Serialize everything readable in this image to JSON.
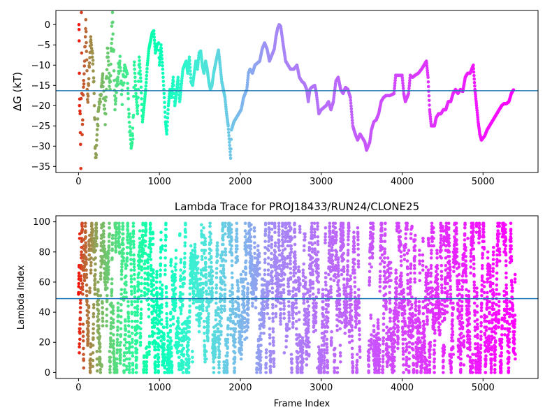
{
  "chart_data": [
    {
      "type": "scatter",
      "title": "",
      "xlabel": "",
      "ylabel": "ΔG (kT)",
      "xlim": [
        -280,
        5680
      ],
      "ylim": [
        -36.5,
        3.5
      ],
      "xticks": [
        0,
        1000,
        2000,
        3000,
        4000,
        5000
      ],
      "yticks": [
        0,
        -5,
        -10,
        -15,
        -20,
        -25,
        -30,
        -35
      ],
      "hline": -16.3,
      "hline_color": "#1f77b4",
      "colormap": "rainbow",
      "color_by": "frame index (red at 0 to violet at end)",
      "grid": false,
      "legend": "none",
      "keypoints": [
        [
          5,
          0
        ],
        [
          8,
          -4
        ],
        [
          12,
          -20
        ],
        [
          20,
          -22
        ],
        [
          28,
          -36
        ],
        [
          35,
          3
        ],
        [
          45,
          -27
        ],
        [
          60,
          -15
        ],
        [
          75,
          -9
        ],
        [
          90,
          1
        ],
        [
          110,
          -18
        ],
        [
          130,
          -12
        ],
        [
          150,
          -3
        ],
        [
          170,
          -8
        ],
        [
          190,
          -14
        ],
        [
          210,
          -35
        ],
        [
          240,
          -22
        ],
        [
          270,
          -18
        ],
        [
          300,
          -12
        ],
        [
          330,
          -23
        ],
        [
          360,
          -6
        ],
        [
          390,
          -16
        ],
        [
          420,
          3
        ],
        [
          450,
          -21
        ],
        [
          480,
          -14
        ],
        [
          510,
          -9
        ],
        [
          540,
          -17
        ],
        [
          570,
          -10
        ],
        [
          600,
          -12
        ],
        [
          625,
          -22
        ],
        [
          650,
          -30.5
        ],
        [
          670,
          -28
        ],
        [
          690,
          -10
        ],
        [
          710,
          -17
        ],
        [
          730,
          -22
        ],
        [
          750,
          -8
        ],
        [
          770,
          -14
        ],
        [
          790,
          -24
        ],
        [
          810,
          -20
        ],
        [
          830,
          -16
        ],
        [
          850,
          -10
        ],
        [
          870,
          -6
        ],
        [
          890,
          -4
        ],
        [
          910,
          -2
        ],
        [
          930,
          -1.5
        ],
        [
          950,
          -7
        ],
        [
          970,
          -5
        ],
        [
          990,
          -4.5
        ],
        [
          1000,
          -10
        ],
        [
          1020,
          -5
        ],
        [
          1040,
          -11
        ],
        [
          1060,
          -18
        ],
        [
          1075,
          -24
        ],
        [
          1090,
          -27
        ],
        [
          1110,
          -20
        ],
        [
          1130,
          -16
        ],
        [
          1150,
          -18
        ],
        [
          1170,
          -13
        ],
        [
          1190,
          -20
        ],
        [
          1210,
          -17
        ],
        [
          1230,
          -13
        ],
        [
          1250,
          -19
        ],
        [
          1270,
          -15
        ],
        [
          1290,
          -11
        ],
        [
          1310,
          -10
        ],
        [
          1330,
          -9
        ],
        [
          1350,
          -12
        ],
        [
          1370,
          -8
        ],
        [
          1390,
          -14
        ],
        [
          1410,
          -15
        ],
        [
          1430,
          -12
        ],
        [
          1450,
          -9
        ],
        [
          1470,
          -11
        ],
        [
          1490,
          -7
        ],
        [
          1510,
          -6.5
        ],
        [
          1530,
          -10
        ],
        [
          1550,
          -12
        ],
        [
          1570,
          -9
        ],
        [
          1590,
          -11
        ],
        [
          1610,
          -14
        ],
        [
          1630,
          -16
        ],
        [
          1650,
          -15
        ],
        [
          1670,
          -12
        ],
        [
          1690,
          -10
        ],
        [
          1710,
          -8
        ],
        [
          1730,
          -6.3
        ],
        [
          1750,
          -10
        ],
        [
          1770,
          -14
        ],
        [
          1790,
          -16
        ],
        [
          1810,
          -18
        ],
        [
          1830,
          -22
        ],
        [
          1850,
          -25
        ],
        [
          1865,
          -29
        ],
        [
          1880,
          -33
        ],
        [
          1890,
          -26
        ],
        [
          1905,
          -25
        ],
        [
          1920,
          -24
        ],
        [
          1950,
          -23
        ],
        [
          1980,
          -22
        ],
        [
          2010,
          -21
        ],
        [
          2040,
          -18
        ],
        [
          2060,
          -17
        ],
        [
          2080,
          -16
        ],
        [
          2100,
          -12
        ],
        [
          2120,
          -11
        ],
        [
          2150,
          -12
        ],
        [
          2180,
          -10
        ],
        [
          2210,
          -9.5
        ],
        [
          2240,
          -9
        ],
        [
          2270,
          -6
        ],
        [
          2300,
          -4.5
        ],
        [
          2330,
          -6
        ],
        [
          2360,
          -9
        ],
        [
          2390,
          -7.5
        ],
        [
          2420,
          -6
        ],
        [
          2440,
          -3
        ],
        [
          2460,
          -1
        ],
        [
          2480,
          0
        ],
        [
          2500,
          -0.5
        ],
        [
          2530,
          -5
        ],
        [
          2560,
          -9
        ],
        [
          2590,
          -10
        ],
        [
          2620,
          -11
        ],
        [
          2660,
          -11
        ],
        [
          2700,
          -10
        ],
        [
          2730,
          -13
        ],
        [
          2760,
          -14
        ],
        [
          2790,
          -14.5
        ],
        [
          2820,
          -16
        ],
        [
          2840,
          -19
        ],
        [
          2860,
          -16
        ],
        [
          2880,
          -15.5
        ],
        [
          2920,
          -15
        ],
        [
          2940,
          -17
        ],
        [
          2970,
          -22
        ],
        [
          3000,
          -21
        ],
        [
          3030,
          -20.5
        ],
        [
          3060,
          -20
        ],
        [
          3090,
          -19
        ],
        [
          3120,
          -21
        ],
        [
          3150,
          -19
        ],
        [
          3180,
          -14
        ],
        [
          3210,
          -13
        ],
        [
          3240,
          -16
        ],
        [
          3270,
          -17
        ],
        [
          3300,
          -15.5
        ],
        [
          3330,
          -16
        ],
        [
          3360,
          -18
        ],
        [
          3390,
          -25
        ],
        [
          3420,
          -27
        ],
        [
          3450,
          -28.5
        ],
        [
          3480,
          -27
        ],
        [
          3510,
          -28
        ],
        [
          3540,
          -29
        ],
        [
          3560,
          -31
        ],
        [
          3580,
          -30
        ],
        [
          3600,
          -29
        ],
        [
          3620,
          -26
        ],
        [
          3650,
          -24
        ],
        [
          3680,
          -23.5
        ],
        [
          3710,
          -22
        ],
        [
          3740,
          -19
        ],
        [
          3770,
          -18
        ],
        [
          3800,
          -17.5
        ],
        [
          3850,
          -17.5
        ],
        [
          3900,
          -17
        ],
        [
          3920,
          -12.5
        ],
        [
          3960,
          -12.5
        ],
        [
          4000,
          -12.5
        ],
        [
          4020,
          -17
        ],
        [
          4040,
          -19
        ],
        [
          4080,
          -17
        ],
        [
          4100,
          -12.5
        ],
        [
          4130,
          -13
        ],
        [
          4160,
          -12.5
        ],
        [
          4200,
          -12
        ],
        [
          4240,
          -11
        ],
        [
          4270,
          -10
        ],
        [
          4300,
          -9
        ],
        [
          4320,
          -13
        ],
        [
          4340,
          -21
        ],
        [
          4360,
          -25
        ],
        [
          4400,
          -25
        ],
        [
          4420,
          -23
        ],
        [
          4450,
          -22
        ],
        [
          4480,
          -22
        ],
        [
          4510,
          -21
        ],
        [
          4540,
          -21
        ],
        [
          4570,
          -19
        ],
        [
          4600,
          -19
        ],
        [
          4630,
          -17
        ],
        [
          4660,
          -16
        ],
        [
          4690,
          -17
        ],
        [
          4720,
          -16
        ],
        [
          4750,
          -16.5
        ],
        [
          4780,
          -13
        ],
        [
          4810,
          -12
        ],
        [
          4840,
          -12
        ],
        [
          4860,
          -11
        ],
        [
          4880,
          -10
        ],
        [
          4900,
          -16
        ],
        [
          4920,
          -20
        ],
        [
          4940,
          -24
        ],
        [
          4960,
          -27
        ],
        [
          4980,
          -28.5
        ],
        [
          5000,
          -28
        ],
        [
          5020,
          -27.5
        ],
        [
          5050,
          -26
        ],
        [
          5080,
          -25
        ],
        [
          5110,
          -24
        ],
        [
          5140,
          -23
        ],
        [
          5170,
          -22
        ],
        [
          5200,
          -21
        ],
        [
          5230,
          -20
        ],
        [
          5260,
          -19.5
        ],
        [
          5290,
          -19.5
        ],
        [
          5320,
          -19
        ],
        [
          5350,
          -17
        ],
        [
          5380,
          -16
        ]
      ]
    },
    {
      "type": "scatter",
      "title": "Lambda Trace for PROJ18433/RUN24/CLONE25",
      "xlabel": "Frame Index",
      "ylabel": "Lambda Index",
      "xlim": [
        -280,
        5680
      ],
      "ylim": [
        -4,
        104
      ],
      "xticks": [
        0,
        1000,
        2000,
        3000,
        4000,
        5000
      ],
      "yticks": [
        0,
        20,
        40,
        60,
        80,
        100
      ],
      "hline": 49,
      "hline_color": "#1f77b4",
      "colormap": "rainbow",
      "color_by": "frame index (red at 0 to violet at end)",
      "grid": false,
      "legend": "none",
      "n_frames": 5400,
      "lambda_range": [
        0,
        99
      ],
      "gap_ranges": [
        [
          3480,
          3580
        ]
      ]
    }
  ]
}
